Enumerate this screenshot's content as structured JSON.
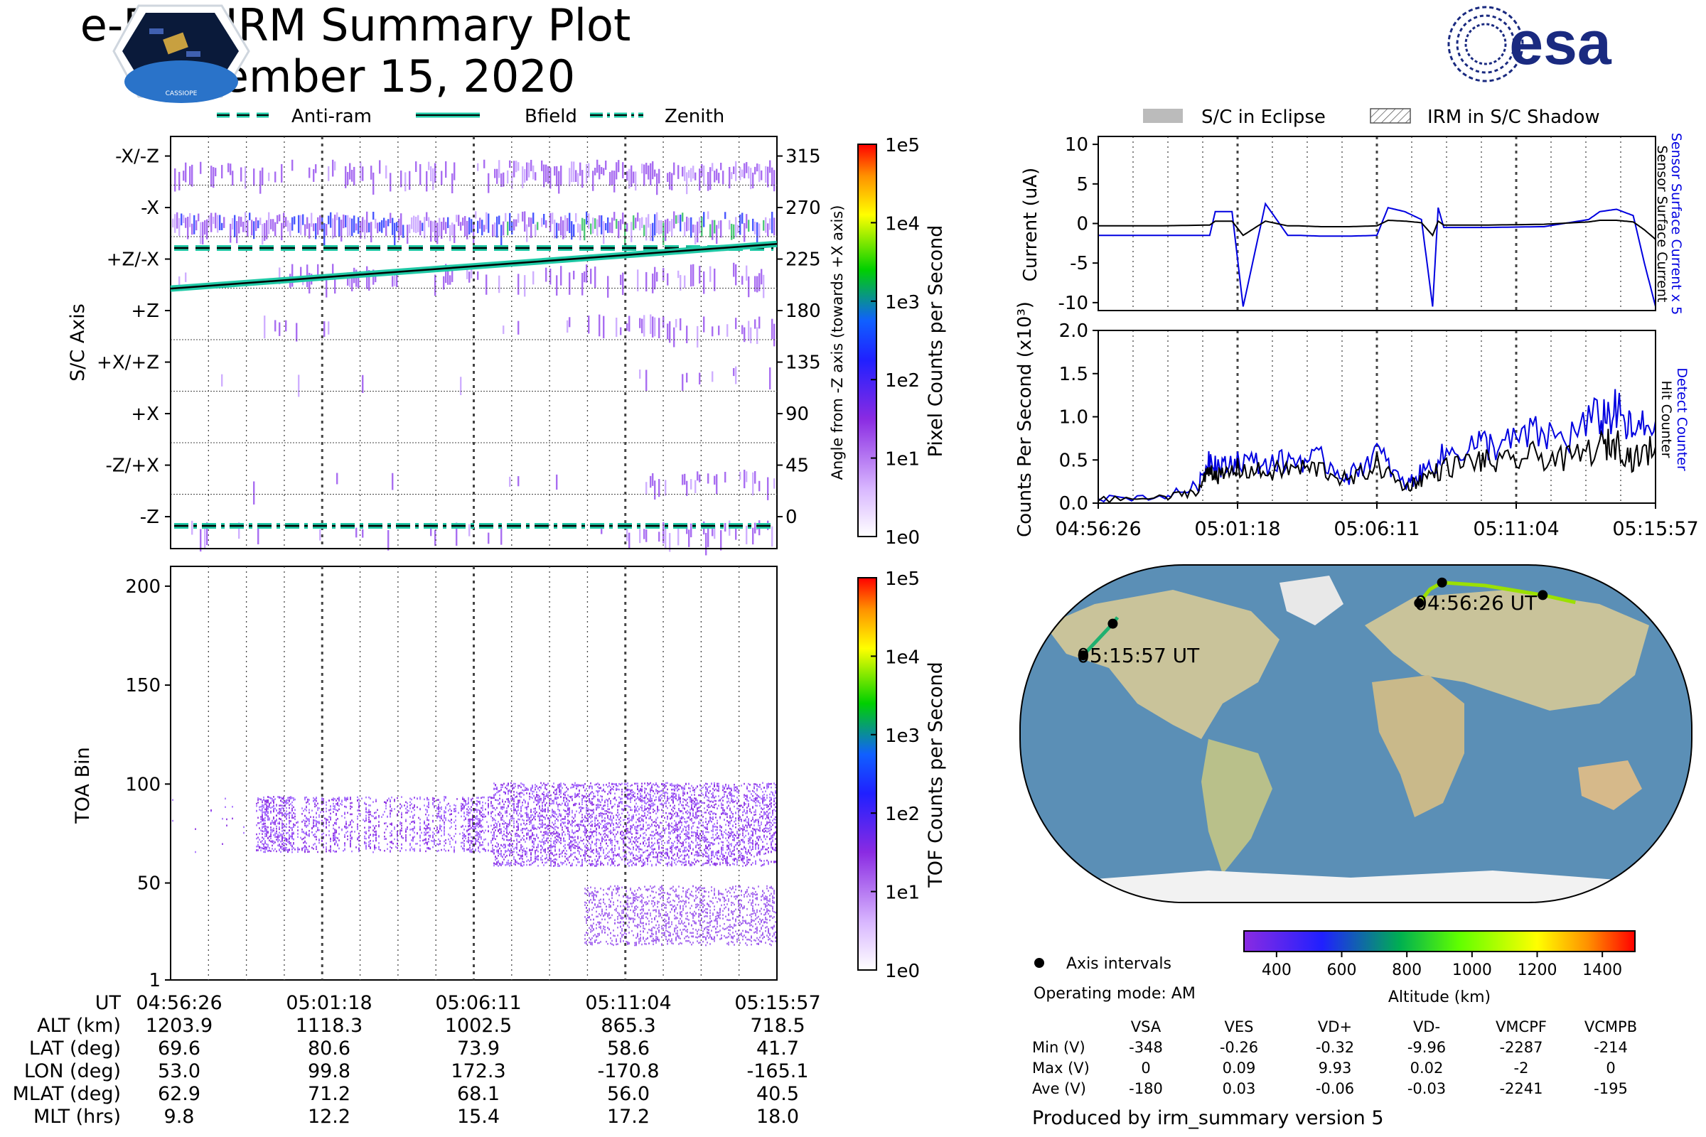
{
  "header": {
    "title": "e-POP IRM Summary Plot",
    "date": "November 15, 2020",
    "esa_logo_text": "esa",
    "cassiope_logo_text": "CASSIOPE"
  },
  "colors": {
    "teal": "#20c9a6",
    "blue_trace": "#0000e0",
    "black_trace": "#000000",
    "eclipse_gray": "#bbbbbb",
    "esa_blue": "#1a2a80",
    "ocean": "#5b8fb6",
    "land": "#c9c39a"
  },
  "chart_data": [
    {
      "type": "heatmap",
      "id": "sc_axis_panel",
      "ylabel": "S/C Axis",
      "right_ylabel": "Angle from -Z axis (towards +X axis)",
      "left_tick_labels": [
        "-X/-Z",
        "-X",
        "+Z/-X",
        "+Z",
        "+X/+Z",
        "+X",
        "-Z/+X",
        "-Z"
      ],
      "right_tick_labels": [
        "315",
        "270",
        "225",
        "180",
        "135",
        "90",
        "45",
        "0"
      ],
      "ylim": [
        0,
        360
      ],
      "legend": [
        "Anti-ram",
        "Bfield",
        "Zenith"
      ],
      "anti_ram_angle": 270,
      "zenith_angle": 0,
      "bfield_angle_start": 170,
      "bfield_angle_end": 209,
      "colorbar": {
        "label": "Pixel Counts per Second",
        "scale": "log",
        "tick_labels": [
          "1e0",
          "1e1",
          "1e2",
          "1e3",
          "1e4",
          "1e5"
        ]
      }
    },
    {
      "type": "heatmap",
      "id": "toa_panel",
      "ylabel": "TOA Bin",
      "y_tick_labels": [
        "1",
        "50",
        "100",
        "150",
        "200"
      ],
      "ylim": [
        1,
        210
      ],
      "colorbar": {
        "label": "TOF Counts per Second",
        "scale": "log",
        "tick_labels": [
          "1e0",
          "1e1",
          "1e2",
          "1e3",
          "1e4",
          "1e5"
        ]
      }
    },
    {
      "type": "line",
      "id": "current_panel",
      "ylabel": "Current (uA)",
      "right_label_blue": "Sensor Surface Current x 5",
      "right_label_black": "Sensor Surface Current",
      "y_tick_labels": [
        "10",
        "5",
        "0",
        "-5",
        "-10"
      ],
      "ylim": [
        -11,
        11
      ],
      "legend": [
        "S/C in Eclipse",
        "IRM in S/C Shadow"
      ],
      "x": [
        0,
        0.1,
        0.2,
        0.21,
        0.24,
        0.26,
        0.3,
        0.34,
        0.36,
        0.4,
        0.45,
        0.5,
        0.52,
        0.55,
        0.58,
        0.6,
        0.61,
        0.62,
        0.7,
        0.8,
        0.88,
        0.9,
        0.93,
        0.96,
        0.98,
        1.0
      ],
      "series": [
        {
          "name": "Sensor Surface Current x 5",
          "values": [
            -1.5,
            -1.5,
            -1.5,
            1.5,
            1.5,
            -10.5,
            2.5,
            -1.5,
            -1.5,
            -1.6,
            -1.6,
            -1.5,
            2.0,
            1.5,
            0.5,
            -10.5,
            2.0,
            -0.5,
            -0.5,
            -0.4,
            0.5,
            1.5,
            1.8,
            1.0,
            -5.0,
            -10.5
          ]
        },
        {
          "name": "Sensor Surface Current",
          "values": [
            -0.3,
            -0.3,
            -0.2,
            0.3,
            0.3,
            -1.5,
            0.3,
            -0.3,
            -0.3,
            -0.4,
            -0.4,
            -0.3,
            0.4,
            0.3,
            0.1,
            -1.5,
            0.3,
            -0.2,
            -0.2,
            -0.1,
            0.2,
            0.4,
            0.4,
            0.2,
            -0.8,
            -2.0
          ]
        }
      ]
    },
    {
      "type": "line",
      "id": "counts_panel",
      "ylabel": "Counts Per Second (x10³)",
      "right_label_blue": "Detect Counter",
      "right_label_black": "Hit Counter",
      "y_tick_labels": [
        "0.0",
        "0.5",
        "1.0",
        "1.5",
        "2.0"
      ],
      "ylim": [
        0,
        2.0
      ],
      "x_tick_labels": [
        "04:56:26",
        "05:01:18",
        "05:06:11",
        "05:11:04",
        "05:15:57"
      ],
      "x": [
        0,
        0.12,
        0.18,
        0.2,
        0.22,
        0.25,
        0.3,
        0.35,
        0.4,
        0.45,
        0.5,
        0.55,
        0.58,
        0.62,
        0.68,
        0.72,
        0.78,
        0.84,
        0.9,
        0.93,
        0.96,
        1.0
      ],
      "series": [
        {
          "name": "Detect Counter",
          "values": [
            0.05,
            0.08,
            0.2,
            0.55,
            0.4,
            0.5,
            0.45,
            0.5,
            0.5,
            0.3,
            0.6,
            0.2,
            0.35,
            0.55,
            0.7,
            0.65,
            0.8,
            0.75,
            1.0,
            1.05,
            0.8,
            0.95
          ]
        },
        {
          "name": "Hit Counter",
          "values": [
            0.04,
            0.06,
            0.15,
            0.4,
            0.3,
            0.4,
            0.35,
            0.4,
            0.4,
            0.25,
            0.45,
            0.18,
            0.28,
            0.4,
            0.5,
            0.45,
            0.55,
            0.5,
            0.65,
            0.7,
            0.5,
            0.65
          ]
        }
      ]
    },
    {
      "type": "scatter",
      "id": "ground_track_map",
      "series": [
        {
          "name": "Axis intervals",
          "x": [
            53.0,
            99.8,
            172.3,
            -170.8,
            -165.1
          ],
          "y": [
            69.6,
            80.6,
            73.9,
            58.6,
            41.7
          ]
        }
      ],
      "annotations": [
        "04:56:26 UT",
        "05:15:57 UT"
      ],
      "colorbar": {
        "label": "Altitude (km)",
        "tick_labels": [
          "400",
          "600",
          "800",
          "1000",
          "1200",
          "1400"
        ],
        "range": [
          300,
          1500
        ]
      }
    }
  ],
  "track_table": {
    "row_labels": [
      "UT",
      "ALT (km)",
      "LAT (deg)",
      "LON (deg)",
      "MLAT (deg)",
      "MLT (hrs)"
    ],
    "columns": [
      [
        "04:56:26",
        "1203.9",
        "69.6",
        "53.0",
        "62.9",
        "9.8"
      ],
      [
        "05:01:18",
        "1118.3",
        "80.6",
        "99.8",
        "71.2",
        "12.2"
      ],
      [
        "05:06:11",
        "1002.5",
        "73.9",
        "172.3",
        "68.1",
        "15.4"
      ],
      [
        "05:11:04",
        "865.3",
        "58.6",
        "-170.8",
        "56.0",
        "17.2"
      ],
      [
        "05:15:57",
        "718.5",
        "41.7",
        "-165.1",
        "40.5",
        "18.0"
      ]
    ]
  },
  "info": {
    "axis_intervals_label": "Axis intervals",
    "operating_mode": "Operating mode: AM",
    "footer": "Produced by irm_summary version 5"
  },
  "voltage_table": {
    "headers": [
      "VSA",
      "VES",
      "VD+",
      "VD-",
      "VMCPF",
      "VCMPB"
    ],
    "rows": [
      {
        "label": "Min (V)",
        "values": [
          "-348",
          "-0.26",
          "-0.32",
          "-9.96",
          "-2287",
          "-214"
        ]
      },
      {
        "label": "Max (V)",
        "values": [
          "0",
          "0.09",
          "9.93",
          "0.02",
          "-2",
          "0"
        ]
      },
      {
        "label": "Ave (V)",
        "values": [
          "-180",
          "0.03",
          "-0.06",
          "-0.03",
          "-2241",
          "-195"
        ]
      }
    ]
  }
}
